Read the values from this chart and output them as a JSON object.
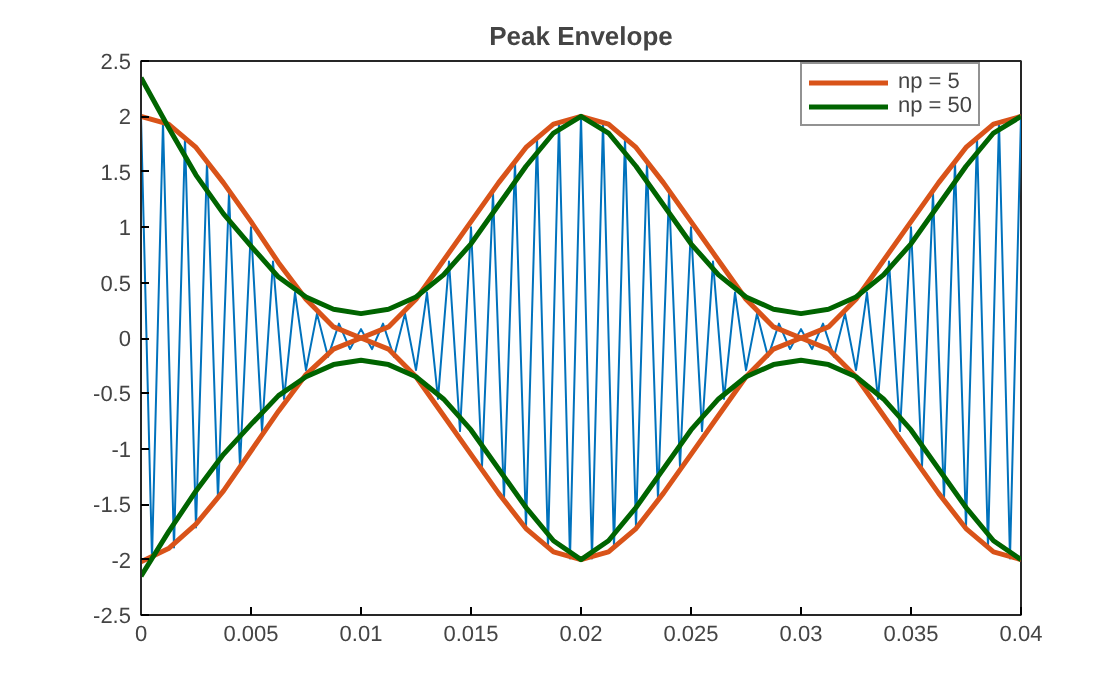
{
  "chart_data": {
    "type": "line",
    "title": "Peak Envelope",
    "x": [
      0,
      0.00125,
      0.0025,
      0.00375,
      0.005,
      0.00625,
      0.0075,
      0.00875,
      0.01,
      0.01125,
      0.0125,
      0.01375,
      0.015,
      0.01625,
      0.0175,
      0.01875,
      0.02,
      0.02125,
      0.0225,
      0.02375,
      0.025,
      0.02625,
      0.0275,
      0.02875,
      0.03,
      0.03125,
      0.0325,
      0.03375,
      0.035,
      0.03625,
      0.0375,
      0.03875,
      0.04
    ],
    "series": [
      {
        "color": "#0072bd",
        "x": [
          0,
          0.0005,
          0.001,
          0.0015,
          0.002,
          0.0025,
          0.003,
          0.0035,
          0.004,
          0.0045,
          0.005,
          0.0055,
          0.006,
          0.0065,
          0.007,
          0.0075,
          0.008,
          0.0085,
          0.009,
          0.0095,
          0.01,
          0.0105,
          0.011,
          0.0115,
          0.012,
          0.0125,
          0.013,
          0.0135,
          0.014,
          0.0145,
          0.015,
          0.0155,
          0.016,
          0.0165,
          0.017,
          0.0175,
          0.018,
          0.0185,
          0.019,
          0.0195,
          0.02,
          0.0205,
          0.021,
          0.0215,
          0.022,
          0.0225,
          0.023,
          0.0235,
          0.024,
          0.0245,
          0.025,
          0.0255,
          0.026,
          0.0265,
          0.027,
          0.0275,
          0.028,
          0.0285,
          0.029,
          0.0295,
          0.03,
          0.0305,
          0.031,
          0.0315,
          0.032,
          0.0325,
          0.033,
          0.0335,
          0.034,
          0.0345,
          0.035,
          0.0355,
          0.036,
          0.0365,
          0.037,
          0.0375,
          0.038,
          0.0385,
          0.039,
          0.0395,
          0.04
        ],
        "values": [
          2,
          -1.99,
          1.95,
          -1.89,
          1.81,
          -1.71,
          1.59,
          -1.45,
          1.31,
          -1.16,
          1,
          -0.84,
          0.69,
          -0.55,
          0.41,
          -0.29,
          0.22,
          -0.17,
          0.13,
          -0.1,
          0.08,
          -0.1,
          0.13,
          -0.17,
          0.22,
          -0.29,
          0.41,
          -0.55,
          0.69,
          -0.84,
          1,
          -1.16,
          1.31,
          -1.45,
          1.59,
          -1.71,
          1.81,
          -1.89,
          1.95,
          -1.99,
          2,
          -1.99,
          1.95,
          -1.89,
          1.81,
          -1.71,
          1.59,
          -1.45,
          1.31,
          -1.16,
          1,
          -0.84,
          0.69,
          -0.55,
          0.41,
          -0.29,
          0.22,
          -0.17,
          0.13,
          -0.1,
          0.08,
          -0.1,
          0.13,
          -0.17,
          0.22,
          -0.29,
          0.41,
          -0.55,
          0.69,
          -0.84,
          1,
          -1.16,
          1.31,
          -1.45,
          1.59,
          -1.71,
          1.81,
          -1.89,
          1.95,
          -1.99,
          2
        ]
      },
      {
        "name": "np = 5",
        "color": "#d95319",
        "values": [
          2.0,
          1.93,
          1.72,
          1.4,
          1.05,
          0.68,
          0.35,
          0.1,
          0.0,
          0.1,
          0.35,
          0.7,
          1.05,
          1.4,
          1.72,
          1.93,
          2.0,
          1.93,
          1.72,
          1.4,
          1.05,
          0.7,
          0.35,
          0.1,
          0.0,
          0.1,
          0.35,
          0.7,
          1.05,
          1.4,
          1.72,
          1.93,
          2.0
        ]
      },
      {
        "color": "#d95319",
        "values": [
          -2.02,
          -1.9,
          -1.68,
          -1.38,
          -1.02,
          -0.66,
          -0.33,
          -0.1,
          0,
          -0.1,
          -0.35,
          -0.7,
          -1.05,
          -1.4,
          -1.72,
          -1.93,
          -2.0,
          -1.93,
          -1.72,
          -1.4,
          -1.05,
          -0.7,
          -0.35,
          -0.1,
          0,
          -0.1,
          -0.35,
          -0.7,
          -1.05,
          -1.4,
          -1.72,
          -1.93,
          -2.0
        ]
      },
      {
        "name": "np = 50",
        "color": "#006400",
        "values": [
          2.35,
          1.9,
          1.47,
          1.12,
          0.83,
          0.55,
          0.37,
          0.26,
          0.22,
          0.26,
          0.37,
          0.57,
          0.85,
          1.2,
          1.55,
          1.85,
          2.0,
          1.85,
          1.55,
          1.2,
          0.85,
          0.57,
          0.37,
          0.26,
          0.22,
          0.26,
          0.37,
          0.57,
          0.85,
          1.2,
          1.55,
          1.85,
          2.0
        ]
      },
      {
        "color": "#006400",
        "values": [
          -2.15,
          -1.75,
          -1.38,
          -1.05,
          -0.78,
          -0.52,
          -0.35,
          -0.24,
          -0.2,
          -0.24,
          -0.35,
          -0.55,
          -0.83,
          -1.18,
          -1.53,
          -1.83,
          -2.0,
          -1.83,
          -1.53,
          -1.18,
          -0.83,
          -0.55,
          -0.35,
          -0.24,
          -0.2,
          -0.24,
          -0.35,
          -0.55,
          -0.83,
          -1.18,
          -1.53,
          -1.83,
          -2.0
        ]
      }
    ],
    "xlim": [
      0,
      0.04
    ],
    "xticks": [
      0,
      0.005,
      0.01,
      0.015,
      0.02,
      0.025,
      0.03,
      0.035,
      0.04
    ],
    "ylim": [
      -2.5,
      2.5
    ],
    "yticks": [
      -2.5,
      -2,
      -1.5,
      -1,
      -0.5,
      0,
      0.5,
      1,
      1.5,
      2,
      2.5
    ],
    "grid": false,
    "legend": "top right",
    "marker": "none",
    "line_style": "solid"
  }
}
